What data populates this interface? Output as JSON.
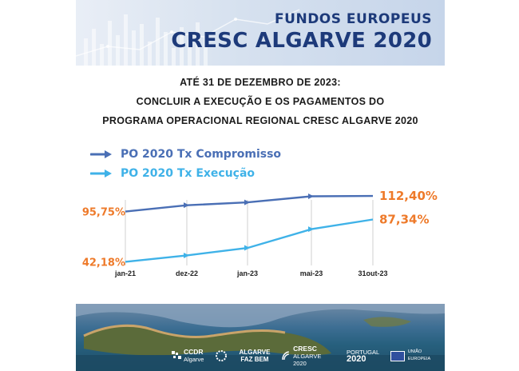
{
  "brand": {
    "line1": "FUNDOS EUROPEUS",
    "line2": "CRESC ALGARVE 2020"
  },
  "headline": [
    "ATÉ 31 DE DEZEMBRO DE 2023:",
    "CONCLUIR A EXECUÇÃO E OS PAGAMENTOS DO",
    "PROGRAMA OPERACIONAL REGIONAL CRESC ALGARVE 2020"
  ],
  "colors": {
    "series1": "#4a6fb5",
    "series2": "#3fb2e8",
    "value_label": "#ee7a2a",
    "brand_blue": "#1d3a7a"
  },
  "chart_data": {
    "type": "line",
    "title": "",
    "xlabel": "",
    "ylabel": "",
    "categories": [
      "jan-21",
      "dez-22",
      "jan-23",
      "mai-23",
      "31out-23"
    ],
    "series": [
      {
        "name": "PO 2020 Tx Compromisso",
        "values": [
          95.75,
          102.5,
          105.5,
          112.0,
          112.4
        ]
      },
      {
        "name": "PO 2020 Tx Execução",
        "values": [
          42.18,
          49.0,
          57.0,
          77.0,
          87.34
        ]
      }
    ],
    "value_labels": [
      {
        "series": 0,
        "point": 0,
        "text": "95,75%",
        "side": "left"
      },
      {
        "series": 1,
        "point": 0,
        "text": "42,18%",
        "side": "left"
      },
      {
        "series": 0,
        "point": 4,
        "text": "112,40%",
        "side": "right"
      },
      {
        "series": 1,
        "point": 4,
        "text": "87,34%",
        "side": "right"
      }
    ],
    "grid": "vertical",
    "legend_position": "top-left"
  },
  "footer": {
    "logos": [
      {
        "name": "ccdr",
        "line1": "CCDR",
        "line2": "Algarve"
      },
      {
        "name": "faz",
        "line1": "ALGARVE",
        "line2": "FAZ BEM"
      },
      {
        "name": "cresc",
        "line1": "CRESC",
        "line2": "ALGARVE 2020"
      },
      {
        "name": "portugal",
        "line1": "PORTUGAL",
        "line2": "2020"
      },
      {
        "name": "ue",
        "line1": "UNIÃO EUROPEIA"
      }
    ]
  }
}
